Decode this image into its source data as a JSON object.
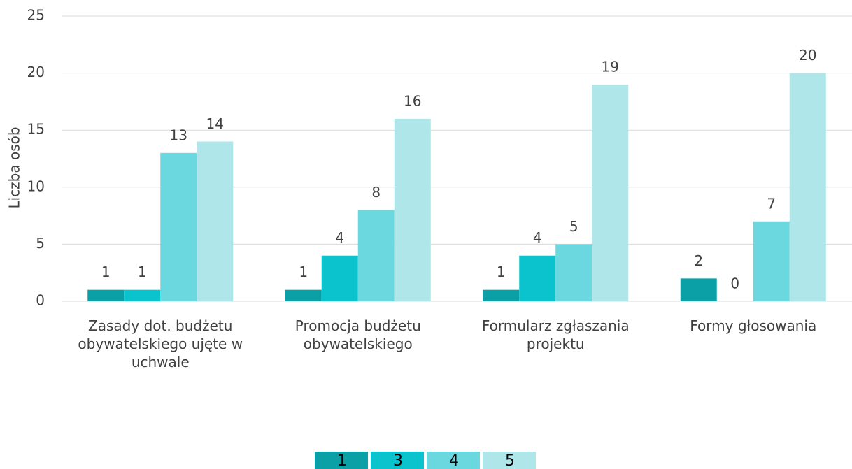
{
  "chart_data": {
    "type": "bar",
    "y_label": "Liczba osób",
    "categories": [
      "Zasady dot. budżetu obywatelskiego ujęte w uchwale",
      "Promocja budżetu obywatelskiego",
      "Formularz zgłaszania projektu",
      "Formy głosowania"
    ],
    "series": [
      {
        "name": "1",
        "color": "#0aa0a5",
        "values": [
          1,
          1,
          1,
          2
        ]
      },
      {
        "name": "3",
        "color": "#0ac3cc",
        "values": [
          1,
          4,
          4,
          0
        ]
      },
      {
        "name": "4",
        "color": "#6bd8e0",
        "values": [
          13,
          8,
          5,
          7
        ]
      },
      {
        "name": "5",
        "color": "#aee6ea",
        "values": [
          14,
          16,
          19,
          20
        ]
      }
    ],
    "ylim": [
      0,
      25
    ],
    "yticks": [
      0,
      5,
      10,
      15,
      20,
      25
    ],
    "grid": true,
    "legend": "bottom"
  }
}
